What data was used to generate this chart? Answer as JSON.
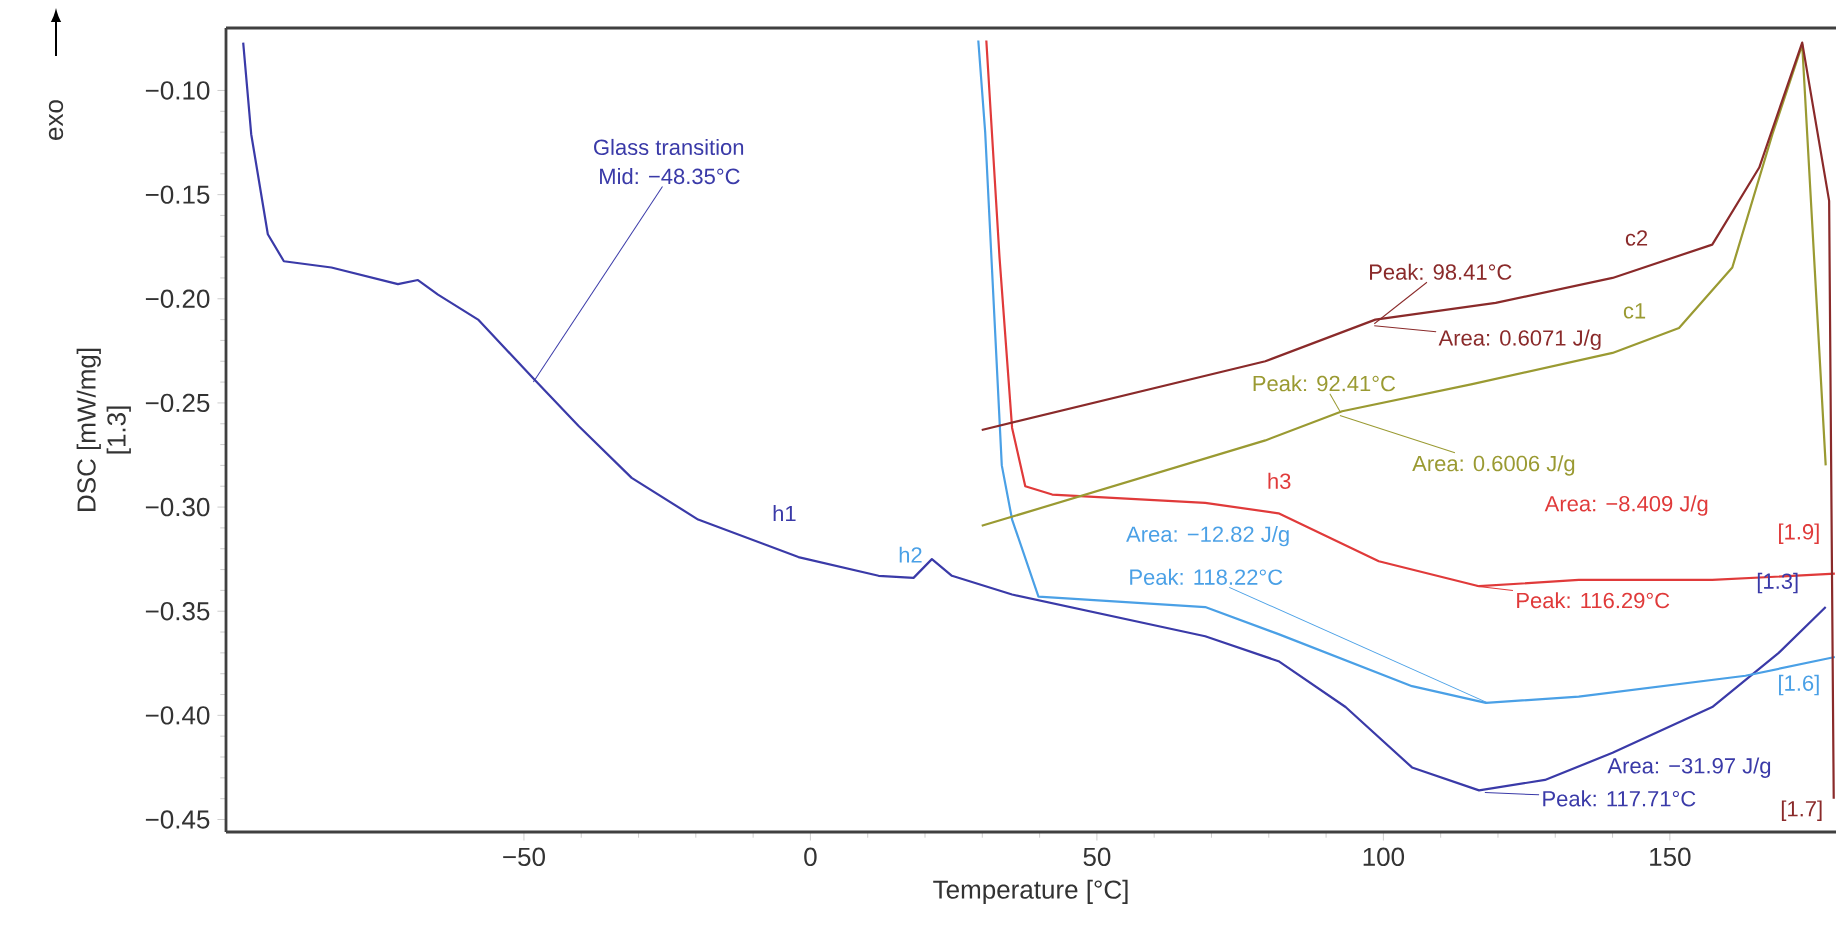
{
  "chart_data": {
    "type": "line",
    "xlabel": "Temperature [°C]",
    "ylabel": "DSC [mW/mg]",
    "xlim": [
      -102,
      179
    ],
    "ylim": [
      -0.456,
      -0.07
    ],
    "xticks": [
      {
        "value": -50,
        "label": "−50"
      },
      0,
      50,
      100,
      150
    ],
    "yticks": [
      {
        "value": -0.45,
        "label": "−0.45"
      },
      {
        "value": -0.4,
        "label": "−0.40"
      },
      {
        "value": -0.35,
        "label": "−0.35"
      },
      {
        "value": -0.3,
        "label": "−0.30"
      },
      {
        "value": -0.25,
        "label": "−0.25"
      },
      {
        "value": -0.2,
        "label": "−0.20"
      },
      {
        "value": -0.15,
        "label": "−0.15"
      },
      {
        "value": -0.1,
        "label": "−0.10"
      }
    ],
    "grid": false,
    "series": [
      {
        "name": "h1",
        "color": "#3a3aa8",
        "x": [
          -99,
          -97.6,
          -94.7,
          -91.9,
          -83.6,
          -72,
          -68.5,
          -65,
          -58,
          -48.1,
          -40.5,
          -31.2,
          -19.6,
          -2.1,
          11.9,
          18,
          21.2,
          24.7,
          35.2,
          68.9,
          81.7,
          93.4,
          105,
          116.7,
          128.2,
          140,
          157.4,
          169,
          177.2
        ],
        "values": [
          -0.077,
          -0.121,
          -0.169,
          -0.182,
          -0.185,
          -0.193,
          -0.191,
          -0.198,
          -0.21,
          -0.239,
          -0.261,
          -0.286,
          -0.306,
          -0.324,
          -0.333,
          -0.334,
          -0.325,
          -0.333,
          -0.342,
          -0.362,
          -0.374,
          -0.396,
          -0.425,
          -0.436,
          -0.431,
          -0.418,
          -0.396,
          -0.37,
          -0.348
        ]
      },
      {
        "name": "h2",
        "color": "#4aa0e6",
        "x": [
          29.3,
          30.5,
          33.4,
          35.2,
          39.8,
          68.9,
          81.7,
          105,
          117.9,
          134.1,
          163.2,
          178.8
        ],
        "values": [
          -0.076,
          -0.12,
          -0.28,
          -0.306,
          -0.343,
          -0.348,
          -0.361,
          -0.386,
          -0.394,
          -0.391,
          -0.381,
          -0.372
        ]
      },
      {
        "name": "h3",
        "color": "#e03a3a",
        "x": [
          30.7,
          33,
          35.2,
          37.5,
          42.2,
          68.9,
          81.7,
          99.2,
          116.7,
          134.1,
          157.4,
          178.8
        ],
        "values": [
          -0.076,
          -0.18,
          -0.262,
          -0.29,
          -0.294,
          -0.298,
          -0.303,
          -0.326,
          -0.338,
          -0.335,
          -0.335,
          -0.332
        ]
      },
      {
        "name": "c1",
        "color": "#9a9a32",
        "x": [
          29.9,
          79.4,
          92.8,
          115.5,
          140,
          151.6,
          160.9,
          167.9,
          173.1,
          177.2
        ],
        "values": [
          -0.309,
          -0.268,
          -0.254,
          -0.241,
          -0.226,
          -0.214,
          -0.185,
          -0.121,
          -0.078,
          -0.28
        ]
      },
      {
        "name": "c2",
        "color": "#8a2a2a",
        "x": [
          29.9,
          79.4,
          98.6,
          119.6,
          140,
          157.4,
          165.6,
          173.1,
          177.8,
          178.6
        ],
        "values": [
          -0.263,
          -0.23,
          -0.21,
          -0.202,
          -0.19,
          -0.174,
          -0.137,
          -0.077,
          -0.153,
          -0.44
        ]
      }
    ],
    "annotations": [
      "exo",
      "Glass transition",
      {
        "text": "Mid: −48.35°C",
        "x": -48.35,
        "y": -0.24
      },
      {
        "text": "Peak: 98.41°C",
        "x": 98.41,
        "y": -0.212
      },
      {
        "text": "Area: 0.6071 J/g",
        "x": 98.41,
        "y": -0.213
      },
      {
        "text": "Peak: 92.41°C",
        "x": 92.41,
        "y": -0.254
      },
      {
        "text": "Area: 0.6006 J/g",
        "x": 92.41,
        "y": -0.256
      },
      "Area: −8.409 J/g",
      {
        "text": "Peak: 116.29°C",
        "x": 116.29,
        "y": -0.338
      },
      "Area: −12.82 J/g",
      {
        "text": "Peak: 118.22°C",
        "x": 118.22,
        "y": -0.394
      },
      "Area: −31.97 J/g",
      {
        "text": "Peak: 117.71°C",
        "x": 117.71,
        "y": -0.437
      },
      {
        "text": "[1.9]",
        "x": 178.8,
        "y": -0.332
      },
      {
        "text": "[1.3]",
        "x": 177.2,
        "y": -0.348
      },
      {
        "text": "[1.6]",
        "x": 178.8,
        "y": -0.372
      },
      {
        "text": "[1.7]",
        "x": 178.6,
        "y": -0.44
      },
      "[1.3]"
    ]
  }
}
